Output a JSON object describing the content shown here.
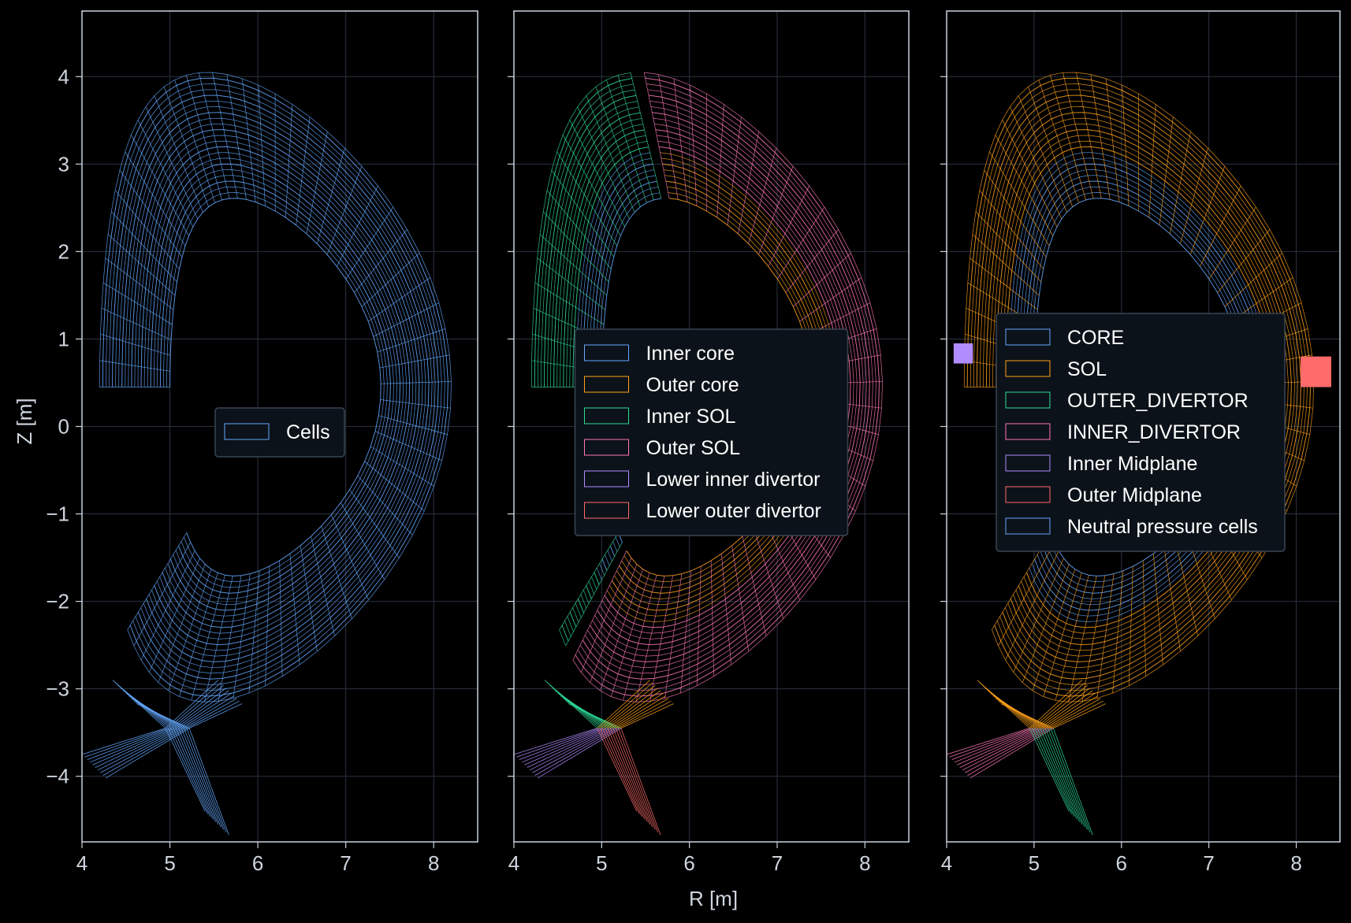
{
  "colors": {
    "background": "#000000",
    "axes": "#c8d3df",
    "grid": "#2a3340",
    "blue": "#64a8ff",
    "orange": "#ffa21a",
    "green": "#2edc98",
    "pink": "#ff77b8",
    "purple": "#b08cff",
    "red": "#ff6b6b"
  },
  "axes_labels": {
    "x": "R [m]",
    "y": "Z [m]"
  },
  "chart_data": [
    {
      "type": "mesh",
      "xlim": [
        4.0,
        4.5
      ],
      "ylim": [
        -4.7,
        4.7
      ],
      "x_ticks": [
        4,
        5,
        6,
        7,
        8
      ],
      "y_ticks": [
        -4,
        -3,
        -2,
        -1,
        0,
        1,
        2,
        3,
        4
      ],
      "grid": true,
      "legend": {
        "position": "center",
        "entries": [
          {
            "label": "Cells",
            "color": "#64a8ff"
          }
        ]
      }
    },
    {
      "type": "mesh",
      "xlim": [
        4.0,
        4.5
      ],
      "ylim": [
        -4.7,
        4.7
      ],
      "x_ticks": [
        4,
        5,
        6,
        7,
        8
      ],
      "grid": true,
      "legend": {
        "position": "center",
        "entries": [
          {
            "label": "Inner core",
            "color": "#64a8ff"
          },
          {
            "label": "Outer core",
            "color": "#ffa21a"
          },
          {
            "label": "Inner SOL",
            "color": "#2edc98"
          },
          {
            "label": "Outer SOL",
            "color": "#ff77b8"
          },
          {
            "label": "Lower inner divertor",
            "color": "#b08cff"
          },
          {
            "label": "Lower outer divertor",
            "color": "#ff6b6b"
          }
        ]
      }
    },
    {
      "type": "mesh",
      "xlim": [
        4.0,
        4.5
      ],
      "ylim": [
        -4.7,
        4.7
      ],
      "x_ticks": [
        4,
        5,
        6,
        7,
        8
      ],
      "grid": true,
      "legend": {
        "position": "center-right",
        "entries": [
          {
            "label": "CORE",
            "color": "#64a8ff"
          },
          {
            "label": "SOL",
            "color": "#ffa21a"
          },
          {
            "label": "OUTER_DIVERTOR",
            "color": "#2edc98"
          },
          {
            "label": "INNER_DIVERTOR",
            "color": "#ff77b8"
          },
          {
            "label": "Inner Midplane",
            "color": "#b08cff"
          },
          {
            "label": "Outer Midplane",
            "color": "#ff6b6b"
          },
          {
            "label": "Neutral pressure cells",
            "color": "#64a8ff"
          }
        ]
      }
    }
  ]
}
